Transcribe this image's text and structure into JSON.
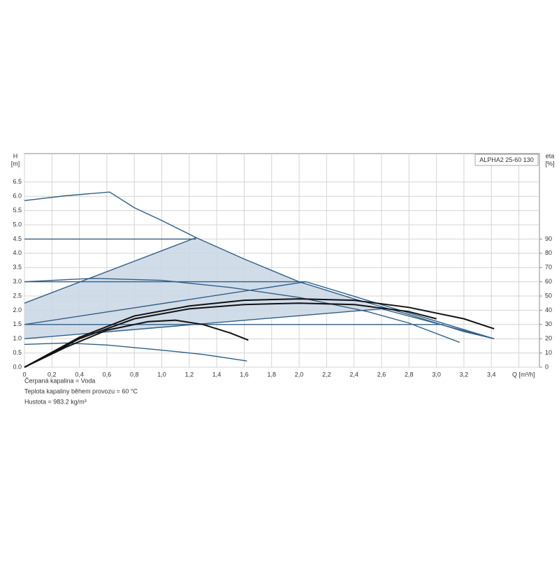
{
  "chart_data": {
    "type": "line",
    "legend_box": "ALPHA2 25-60 130",
    "y_label": [
      "H",
      "[m]"
    ],
    "y2_label": [
      "eta",
      "[%]"
    ],
    "x_label": "Q [m³/h]",
    "notes": [
      "Čerpaná kapalina = Voda",
      "Teplota kapaliny během provozu = 60 °C",
      "Hustota = 983.2 kg/m³"
    ],
    "xlim": [
      0,
      3.75
    ],
    "xticks": [
      {
        "value": 0,
        "label": "0"
      },
      {
        "value": 0.2,
        "label": "0,2"
      },
      {
        "value": 0.4,
        "label": "0,4"
      },
      {
        "value": 0.6,
        "label": "0,6"
      },
      {
        "value": 0.8,
        "label": "0,8"
      },
      {
        "value": 1.0,
        "label": "1,0"
      },
      {
        "value": 1.2,
        "label": "1,2"
      },
      {
        "value": 1.4,
        "label": "1,4"
      },
      {
        "value": 1.6,
        "label": "1,6"
      },
      {
        "value": 1.8,
        "label": "1,8"
      },
      {
        "value": 2.0,
        "label": "2,0"
      },
      {
        "value": 2.2,
        "label": "2,2"
      },
      {
        "value": 2.4,
        "label": "2,4"
      },
      {
        "value": 2.6,
        "label": "2,6"
      },
      {
        "value": 2.8,
        "label": "2,8"
      },
      {
        "value": 3.0,
        "label": "3,0"
      },
      {
        "value": 3.2,
        "label": "3,2"
      },
      {
        "value": 3.4,
        "label": "3,4"
      },
      {
        "value": 3.6,
        "label": null
      }
    ],
    "ylim": [
      0,
      7.5
    ],
    "yticks": [
      {
        "value": 0,
        "label": "0.0"
      },
      0.5,
      {
        "value": 1,
        "label": "1.0"
      },
      1.5,
      {
        "value": 2,
        "label": "2.0"
      },
      2.5,
      {
        "value": 3,
        "label": "3.0"
      },
      3.5,
      {
        "value": 4,
        "label": "4.0"
      },
      4.5,
      {
        "value": 5,
        "label": "5.0"
      },
      5.5,
      {
        "value": 6,
        "label": "6.0"
      },
      6.5
    ],
    "y2lim": [
      0,
      150
    ],
    "y2ticks": [
      0,
      10,
      20,
      30,
      40,
      50,
      60,
      70,
      80,
      90
    ],
    "grid": true,
    "regions": [
      {
        "color": "#c9d6e5",
        "x": [
          0,
          1.25,
          1.6,
          2.0,
          2.4,
          2.6,
          0
        ],
        "values": [
          2.25,
          4.55,
          3.8,
          3.0,
          2.4,
          2.05,
          1.0
        ]
      }
    ],
    "series": [
      {
        "color": "#2f5f86",
        "x": [
          0,
          0.3,
          0.62,
          0.8,
          1.0,
          1.25,
          1.6,
          2.0,
          2.4,
          2.8,
          3.0,
          3.2,
          3.42
        ],
        "values": [
          5.85,
          6.02,
          6.15,
          5.6,
          5.15,
          4.55,
          3.8,
          3.0,
          2.4,
          1.85,
          1.55,
          1.25,
          1.0
        ]
      },
      {
        "color": "#2f5f86",
        "x": [
          0,
          1.25
        ],
        "values": [
          2.25,
          4.55
        ]
      },
      {
        "color": "#2f5f86",
        "x": [
          0,
          1.25
        ],
        "values": [
          4.5,
          4.5
        ]
      },
      {
        "color": "#2f5f86",
        "x": [
          0,
          2.05
        ],
        "values": [
          3.0,
          3.0
        ]
      },
      {
        "color": "#2f5f86",
        "x": [
          0,
          2.05,
          3.42
        ],
        "values": [
          1.5,
          3.0,
          1.0
        ]
      },
      {
        "color": "#2f5f86",
        "x": [
          0,
          3.05
        ],
        "values": [
          1.5,
          1.5
        ]
      },
      {
        "color": "#2f5f86",
        "x": [
          0,
          2.6,
          3.42
        ],
        "values": [
          1.0,
          2.05,
          1.0
        ]
      },
      {
        "color": "#2f5f86",
        "x": [
          0,
          0.5,
          1.0,
          1.5,
          2.0,
          2.5,
          2.8,
          3.17
        ],
        "values": [
          3.0,
          3.12,
          3.05,
          2.8,
          2.45,
          1.95,
          1.55,
          0.87
        ]
      },
      {
        "color": "#2f5f86",
        "x": [
          0,
          0.3,
          0.6,
          1.0,
          1.3,
          1.62
        ],
        "values": [
          0.8,
          0.85,
          0.78,
          0.6,
          0.45,
          0.22
        ]
      },
      {
        "color": "#111111",
        "axis": "y2",
        "x": [
          0,
          0.4,
          0.8,
          1.2,
          1.6,
          2.0,
          2.4,
          2.8,
          3.2,
          3.42
        ],
        "values": [
          0,
          21,
          36,
          43,
          47,
          48,
          47,
          42,
          34,
          27
        ]
      },
      {
        "color": "#111111",
        "axis": "y2",
        "x": [
          0,
          0.4,
          0.8,
          1.2,
          1.6,
          2.0,
          2.4,
          2.8,
          3.0
        ],
        "values": [
          0,
          20,
          34,
          41,
          44,
          45,
          44,
          39,
          34
        ]
      },
      {
        "color": "#111111",
        "axis": "y2",
        "x": [
          0,
          0.3,
          0.6,
          0.9,
          1.1,
          1.3,
          1.5,
          1.63
        ],
        "values": [
          0,
          14,
          26,
          32,
          33,
          30,
          24,
          19
        ]
      }
    ]
  }
}
